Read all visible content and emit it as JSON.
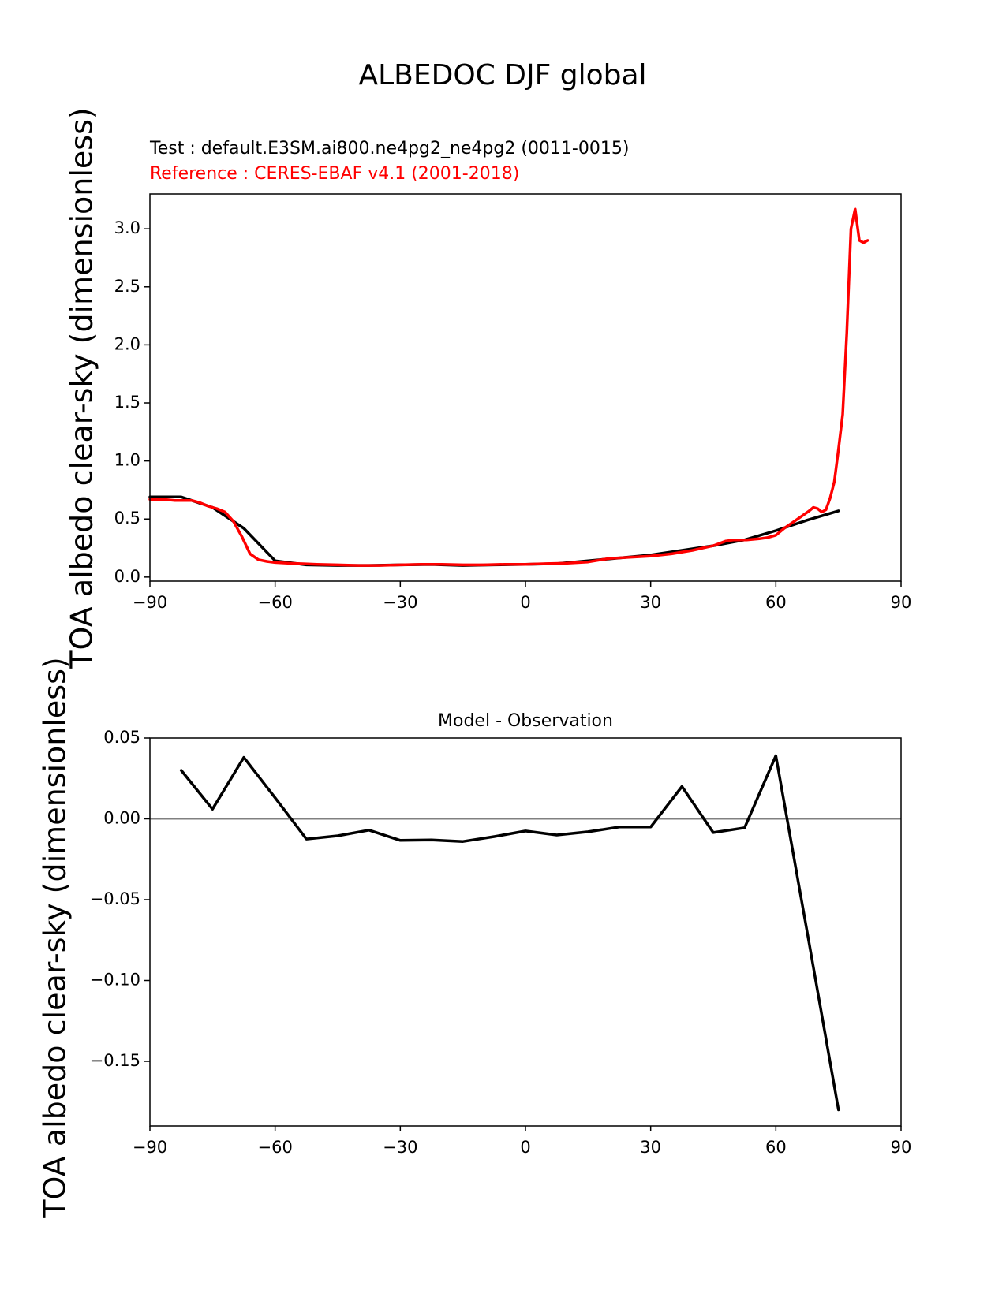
{
  "suptitle": "ALBEDOC DJF global",
  "colors": {
    "test": "#000000",
    "reference": "#ff0000",
    "zero_line": "#808080"
  },
  "chart_data": [
    {
      "type": "line",
      "title_test": "Test : default.E3SM.ai800.ne4pg2_ne4pg2 (0011-0015)",
      "title_reference": "Reference : CERES-EBAF v4.1 (2001-2018)",
      "xlabel": "",
      "ylabel": "TOA albedo clear-sky (dimensionless)",
      "xlim": [
        -90,
        90
      ],
      "ylim": [
        -0.035,
        3.3
      ],
      "xticks": [
        -90,
        -60,
        -30,
        0,
        30,
        60,
        90
      ],
      "xtick_labels": [
        "−90",
        "−60",
        "−30",
        "0",
        "30",
        "60",
        "90"
      ],
      "yticks": [
        0.0,
        0.5,
        1.0,
        1.5,
        2.0,
        2.5,
        3.0
      ],
      "ytick_labels": [
        "0.0",
        "0.5",
        "1.0",
        "1.5",
        "2.0",
        "2.5",
        "3.0"
      ],
      "series": [
        {
          "key": "test",
          "x": [
            -90,
            -82.5,
            -75,
            -67.5,
            -60,
            -52.5,
            -45,
            -37.5,
            -30,
            -22.5,
            -15,
            -7.5,
            0,
            7.5,
            15,
            22.5,
            30,
            37.5,
            45,
            52.5,
            60,
            67.5,
            75
          ],
          "y": [
            0.69,
            0.69,
            0.6,
            0.42,
            0.14,
            0.105,
            0.1,
            0.1,
            0.105,
            0.108,
            0.1,
            0.105,
            0.11,
            0.115,
            0.14,
            0.165,
            0.19,
            0.23,
            0.27,
            0.32,
            0.4,
            0.49,
            0.57
          ]
        },
        {
          "key": "reference",
          "x": [
            -90,
            -87,
            -84,
            -80,
            -78,
            -76,
            -74,
            -72,
            -70,
            -68,
            -66,
            -64,
            -62,
            -60,
            -57,
            -54,
            -50,
            -45,
            -40,
            -35,
            -30,
            -25,
            -20,
            -15,
            -10,
            -5,
            0,
            5,
            10,
            15,
            20,
            25,
            30,
            35,
            40,
            45,
            48,
            50,
            53,
            56,
            58,
            60,
            62,
            64,
            66,
            68,
            69,
            70,
            71,
            72,
            73,
            74,
            75,
            76,
            77,
            78,
            79,
            80,
            81,
            82
          ],
          "y": [
            0.67,
            0.67,
            0.66,
            0.66,
            0.64,
            0.61,
            0.59,
            0.56,
            0.48,
            0.35,
            0.2,
            0.15,
            0.135,
            0.125,
            0.12,
            0.115,
            0.11,
            0.105,
            0.1,
            0.1,
            0.105,
            0.11,
            0.11,
            0.105,
            0.105,
            0.11,
            0.11,
            0.115,
            0.12,
            0.13,
            0.16,
            0.17,
            0.18,
            0.2,
            0.23,
            0.27,
            0.31,
            0.32,
            0.32,
            0.33,
            0.34,
            0.36,
            0.42,
            0.47,
            0.52,
            0.57,
            0.6,
            0.59,
            0.56,
            0.58,
            0.68,
            0.82,
            1.1,
            1.4,
            2.1,
            3.0,
            3.17,
            2.9,
            2.88,
            2.9
          ]
        }
      ]
    },
    {
      "type": "line",
      "title": "Model - Observation",
      "xlabel": "",
      "ylabel": "TOA albedo clear-sky (dimensionless)",
      "xlim": [
        -90,
        90
      ],
      "ylim": [
        -0.19,
        0.05
      ],
      "xticks": [
        -90,
        -60,
        -30,
        0,
        30,
        60,
        90
      ],
      "xtick_labels": [
        "−90",
        "−60",
        "−30",
        "0",
        "30",
        "60",
        "90"
      ],
      "yticks": [
        0.05,
        0.0,
        -0.05,
        -0.1,
        -0.15
      ],
      "ytick_labels": [
        "0.05",
        "0.00",
        "−0.05",
        "−0.10",
        "−0.15"
      ],
      "zero_line": 0,
      "series": [
        {
          "key": "test",
          "x": [
            -82.5,
            -75,
            -67.5,
            -60,
            -52.5,
            -45,
            -37.5,
            -30,
            -22.5,
            -15,
            -7.5,
            0,
            7.5,
            15,
            22.5,
            30,
            37.5,
            45,
            52.5,
            60,
            67.5,
            75
          ],
          "y": [
            0.03,
            0.006,
            0.038,
            0.013,
            -0.0125,
            -0.0105,
            -0.007,
            -0.0133,
            -0.013,
            -0.014,
            -0.011,
            -0.0075,
            -0.01,
            -0.008,
            -0.005,
            -0.005,
            0.02,
            -0.0085,
            -0.0055,
            0.039,
            -0.07,
            -0.18
          ]
        }
      ]
    }
  ]
}
